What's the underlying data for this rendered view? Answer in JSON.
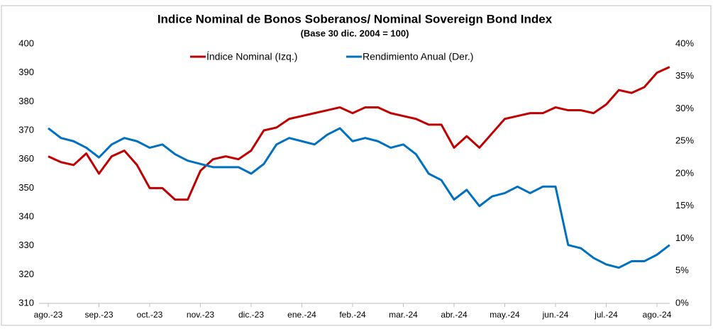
{
  "chart_data": {
    "type": "line",
    "title": "Indice Nominal de Bonos Soberanos/ Nominal Sovereign Bond Index",
    "subtitle": "(Base 30 dic. 2004 = 100)",
    "categories": [
      "ago.-23",
      null,
      null,
      null,
      "sep.-23",
      null,
      null,
      null,
      "oct.-23",
      null,
      null,
      null,
      "nov.-23",
      null,
      null,
      null,
      "dic.-23",
      null,
      null,
      null,
      "ene.-24",
      null,
      null,
      null,
      "feb.-24",
      null,
      null,
      null,
      "mar.-24",
      null,
      null,
      null,
      "abr.-24",
      null,
      null,
      null,
      "may.-24",
      null,
      null,
      null,
      "jun.-24",
      null,
      null,
      null,
      "jul.-24",
      null,
      null,
      null,
      "ago.-24",
      null
    ],
    "series": [
      {
        "name": "Índice Nominal (Izq.)",
        "color": "#c00000",
        "axis": "y",
        "values": [
          361,
          359,
          358,
          362,
          355,
          361,
          363,
          358,
          350,
          350,
          346,
          346,
          356,
          360,
          361,
          360,
          363,
          370,
          371,
          374,
          375,
          376,
          377,
          378,
          376,
          378,
          378,
          376,
          375,
          374,
          372,
          372,
          364,
          368,
          364,
          369,
          374,
          375,
          376,
          376,
          378,
          377,
          377,
          376,
          379,
          384,
          383,
          385,
          390,
          392
        ]
      },
      {
        "name": "Rendimiento Anual (Der.)",
        "color": "#0070c0",
        "axis": "y2",
        "values": [
          27,
          25.5,
          25,
          24,
          22.5,
          24.5,
          25.5,
          25,
          24,
          24.5,
          23,
          22,
          21.5,
          21,
          21,
          21,
          20,
          21.5,
          24.5,
          25.5,
          25,
          24.5,
          26,
          27,
          25,
          25.5,
          25,
          24,
          24.5,
          23,
          20,
          19,
          16,
          17.5,
          15,
          16.5,
          17,
          18,
          17,
          18,
          18,
          9,
          8.5,
          7,
          6,
          5.5,
          6.5,
          6.5,
          7.5,
          9
        ]
      }
    ],
    "ylim": [
      310,
      400
    ],
    "yticks": [
      310,
      320,
      330,
      340,
      350,
      360,
      370,
      380,
      390,
      400
    ],
    "y2lim": [
      0,
      40
    ],
    "y2ticks": [
      {
        "value": 0,
        "label": "0%"
      },
      {
        "value": 5,
        "label": "5%"
      },
      {
        "value": 10,
        "label": "10%"
      },
      {
        "value": 15,
        "label": "15%"
      },
      {
        "value": 20,
        "label": "20%"
      },
      {
        "value": 25,
        "label": "25%"
      },
      {
        "value": 30,
        "label": "30%"
      },
      {
        "value": 35,
        "label": "35%"
      },
      {
        "value": 40,
        "label": "40%"
      }
    ],
    "grid": false,
    "legend": "top"
  }
}
